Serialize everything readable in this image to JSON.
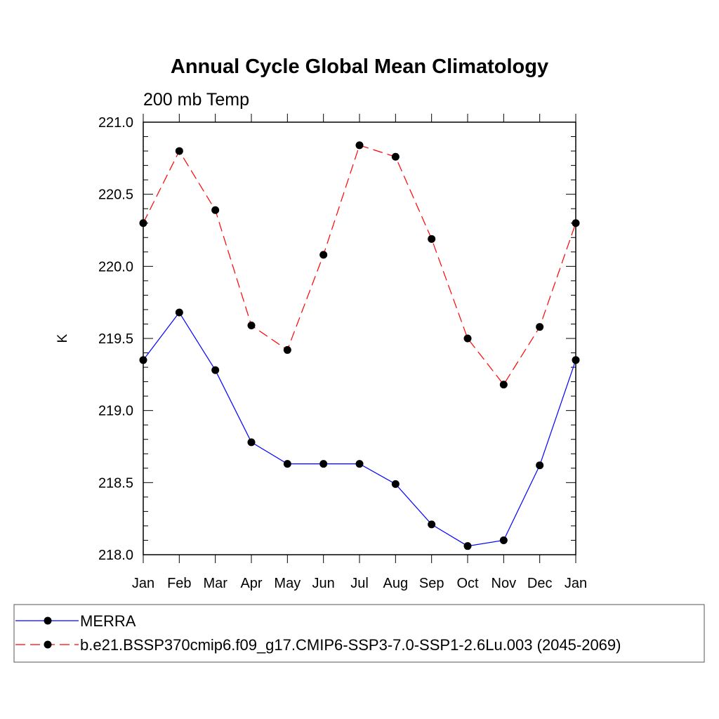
{
  "chart_data": {
    "type": "line",
    "title": "Annual Cycle Global Mean Climatology",
    "subtitle": "200 mb Temp",
    "xlabel": "",
    "ylabel": "K",
    "categories": [
      "Jan",
      "Feb",
      "Mar",
      "Apr",
      "May",
      "Jun",
      "Jul",
      "Aug",
      "Sep",
      "Oct",
      "Nov",
      "Dec",
      "Jan"
    ],
    "ylim": [
      218.0,
      221.0
    ],
    "yticks": [
      "218.0",
      "218.5",
      "219.0",
      "219.5",
      "220.0",
      "220.5",
      "221.0"
    ],
    "grid": false,
    "legend_position": "bottom",
    "series": [
      {
        "name": "MERRA",
        "color": "#0000ff",
        "dash": "solid",
        "values": [
          219.35,
          219.68,
          219.28,
          218.78,
          218.63,
          218.63,
          218.63,
          218.49,
          218.21,
          218.06,
          218.1,
          218.62,
          219.35
        ]
      },
      {
        "name": "b.e21.BSSP370cmip6.f09_g17.CMIP6-SSP3-7.0-SSP1-2.6Lu.003 (2045-2069)",
        "color": "#ff0000",
        "dash": "dashed",
        "values": [
          220.3,
          220.8,
          220.39,
          219.59,
          219.42,
          220.08,
          220.84,
          220.76,
          220.19,
          219.5,
          219.18,
          219.58,
          220.3
        ]
      }
    ]
  }
}
